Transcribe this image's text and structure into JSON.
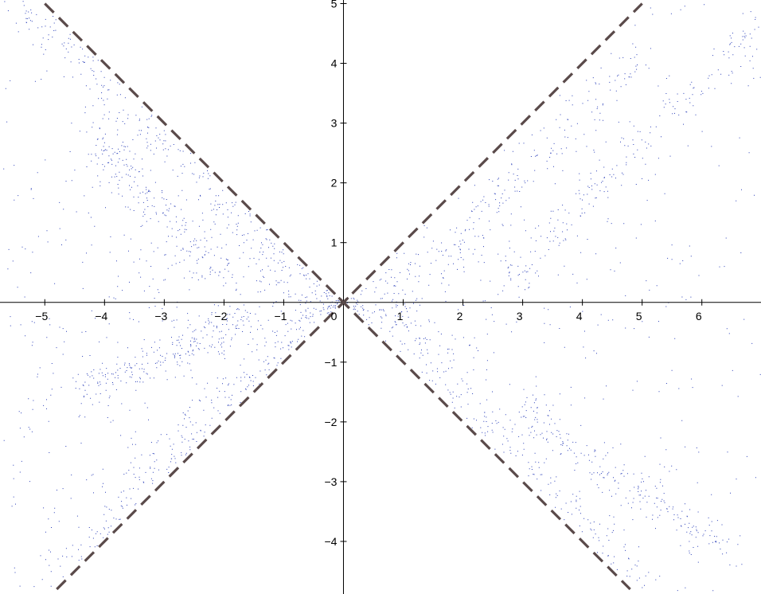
{
  "chart_data": {
    "type": "scatter",
    "title": "",
    "xlabel": "",
    "ylabel": "",
    "xlim": [
      -5.75,
      6.99
    ],
    "ylim": [
      -4.88,
      5.06
    ],
    "grid": false,
    "x_ticks": [
      {
        "value": -5,
        "label": "−5"
      },
      {
        "value": -4,
        "label": "−4"
      },
      {
        "value": -3,
        "label": "−3"
      },
      {
        "value": -2,
        "label": "−2"
      },
      {
        "value": -1,
        "label": "−1"
      },
      {
        "value": 0,
        "label": "0"
      },
      {
        "value": 1,
        "label": "1"
      },
      {
        "value": 2,
        "label": "2"
      },
      {
        "value": 3,
        "label": "3"
      },
      {
        "value": 4,
        "label": "4"
      },
      {
        "value": 5,
        "label": "5"
      },
      {
        "value": 6,
        "label": "6"
      }
    ],
    "y_ticks": [
      {
        "value": 5,
        "label": "5"
      },
      {
        "value": 4,
        "label": "4"
      },
      {
        "value": 3,
        "label": "3"
      },
      {
        "value": 2,
        "label": "2"
      },
      {
        "value": 1,
        "label": "1"
      },
      {
        "value": -1,
        "label": "−1"
      },
      {
        "value": -2,
        "label": "−2"
      },
      {
        "value": -3,
        "label": "−3"
      },
      {
        "value": -4,
        "label": "−4"
      }
    ],
    "point_color": "#2a3fb8",
    "asymptote_color": "#5a4a4a",
    "asymptotes": [
      {
        "name": "y = x",
        "points": [
          [
            -4.8,
            -4.8
          ],
          [
            5.0,
            5.0
          ]
        ]
      },
      {
        "name": "y = -x",
        "points": [
          [
            -5.0,
            5.0
          ],
          [
            4.8,
            -4.8
          ]
        ]
      }
    ],
    "origin_marker": {
      "x": 0,
      "y": 0,
      "shape": "x",
      "color": "#5a4a4a"
    },
    "series": [
      {
        "region": "left cone (|y| < -x)",
        "approx_point_count": 22000,
        "dense_bands": [
          {
            "from": [
              -5.4,
              5.0
            ],
            "to": [
              -0.3,
              0.1
            ]
          },
          {
            "from": [
              -5.0,
              -4.8
            ],
            "to": [
              -0.5,
              -0.2
            ]
          },
          {
            "from": [
              -4.2,
              2.8
            ],
            "to": [
              -2.0,
              0.4
            ]
          },
          {
            "from": [
              -4.5,
              -1.5
            ],
            "to": [
              -1.5,
              -0.3
            ]
          }
        ]
      },
      {
        "region": "right cone (|y| < x)",
        "approx_point_count": 20000,
        "dense_bands": [
          {
            "from": [
              0.8,
              -0.2
            ],
            "to": [
              5.0,
              4.2
            ]
          },
          {
            "from": [
              2.5,
              0.2
            ],
            "to": [
              6.9,
              4.6
            ]
          },
          {
            "from": [
              1.0,
              -0.3
            ],
            "to": [
              4.8,
              -4.6
            ]
          },
          {
            "from": [
              3.0,
              -1.8
            ],
            "to": [
              6.5,
              -4.2
            ]
          }
        ]
      }
    ]
  }
}
